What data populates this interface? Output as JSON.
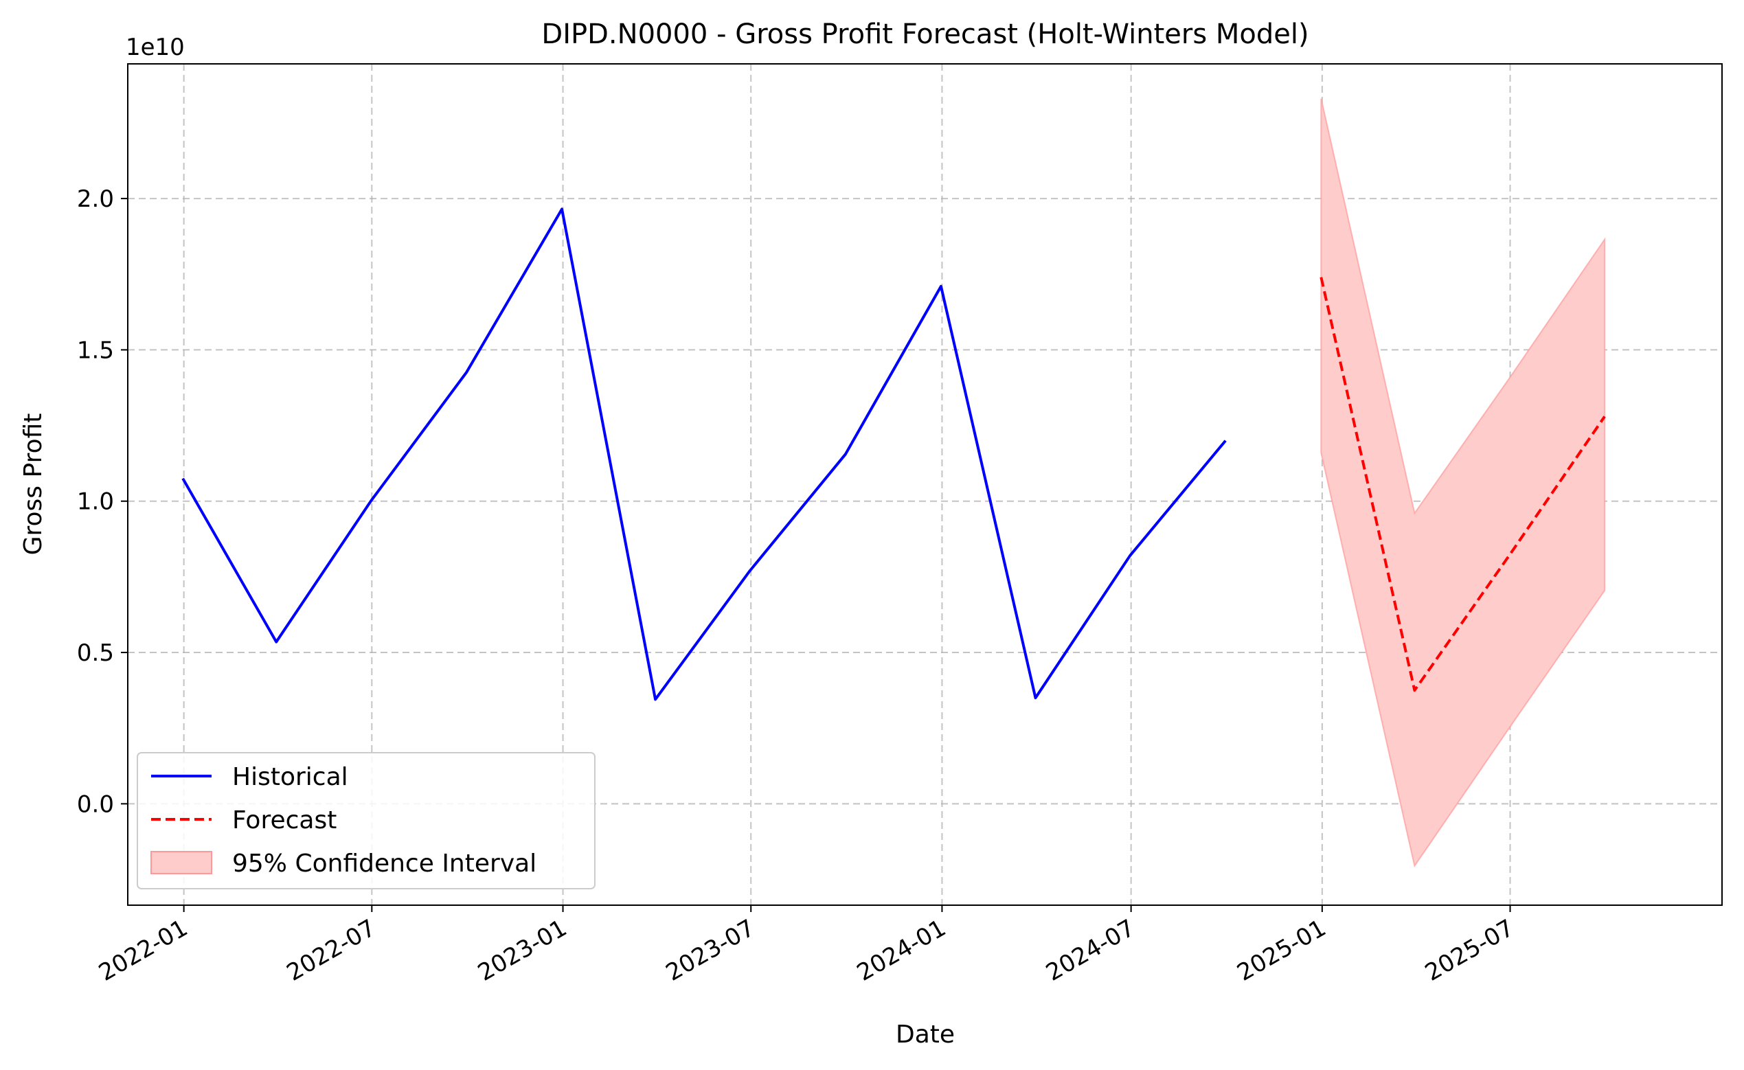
{
  "chart_data": {
    "type": "line",
    "title": "DIPD.N0000 - Gross Profit Forecast (Holt-Winters Model)",
    "xlabel": "Date",
    "ylabel": "Gross Profit",
    "y_offset_text": "1e10",
    "y_scale_factor": 10000000000,
    "xlim": [
      "2021-11-08",
      "2026-01-21"
    ],
    "ylim": [
      -0.335,
      2.445
    ],
    "x_ticks": [
      "2022-01",
      "2022-07",
      "2023-01",
      "2023-07",
      "2024-01",
      "2024-07",
      "2025-01",
      "2025-07"
    ],
    "y_ticks": [
      "0.0",
      "0.5",
      "1.0",
      "1.5",
      "2.0"
    ],
    "grid": true,
    "legend_position": "lower-left",
    "series": [
      {
        "name": "Historical",
        "style": "solid",
        "color": "#0000ff",
        "x": [
          "2021-12-31",
          "2022-03-31",
          "2022-06-30",
          "2022-09-30",
          "2022-12-31",
          "2023-03-31",
          "2023-06-30",
          "2023-09-30",
          "2023-12-31",
          "2024-03-31",
          "2024-06-30",
          "2024-09-30"
        ],
        "y": [
          1.075,
          0.535,
          1.0,
          1.425,
          1.965,
          0.345,
          0.77,
          1.155,
          1.71,
          0.35,
          0.82,
          1.2
        ]
      },
      {
        "name": "Forecast",
        "style": "dashed",
        "color": "#ff0000",
        "x": [
          "2024-12-31",
          "2025-03-31",
          "2025-06-30",
          "2025-09-30"
        ],
        "y": [
          1.74,
          0.375,
          0.82,
          1.28
        ]
      }
    ],
    "confidence_interval": {
      "name": "95% Confidence Interval",
      "color": "#ff9999",
      "x": [
        "2024-12-31",
        "2025-03-31",
        "2025-06-30",
        "2025-09-30"
      ],
      "lower": [
        1.16,
        -0.205,
        0.25,
        0.705
      ],
      "upper": [
        2.33,
        0.96,
        1.405,
        1.865
      ]
    }
  }
}
